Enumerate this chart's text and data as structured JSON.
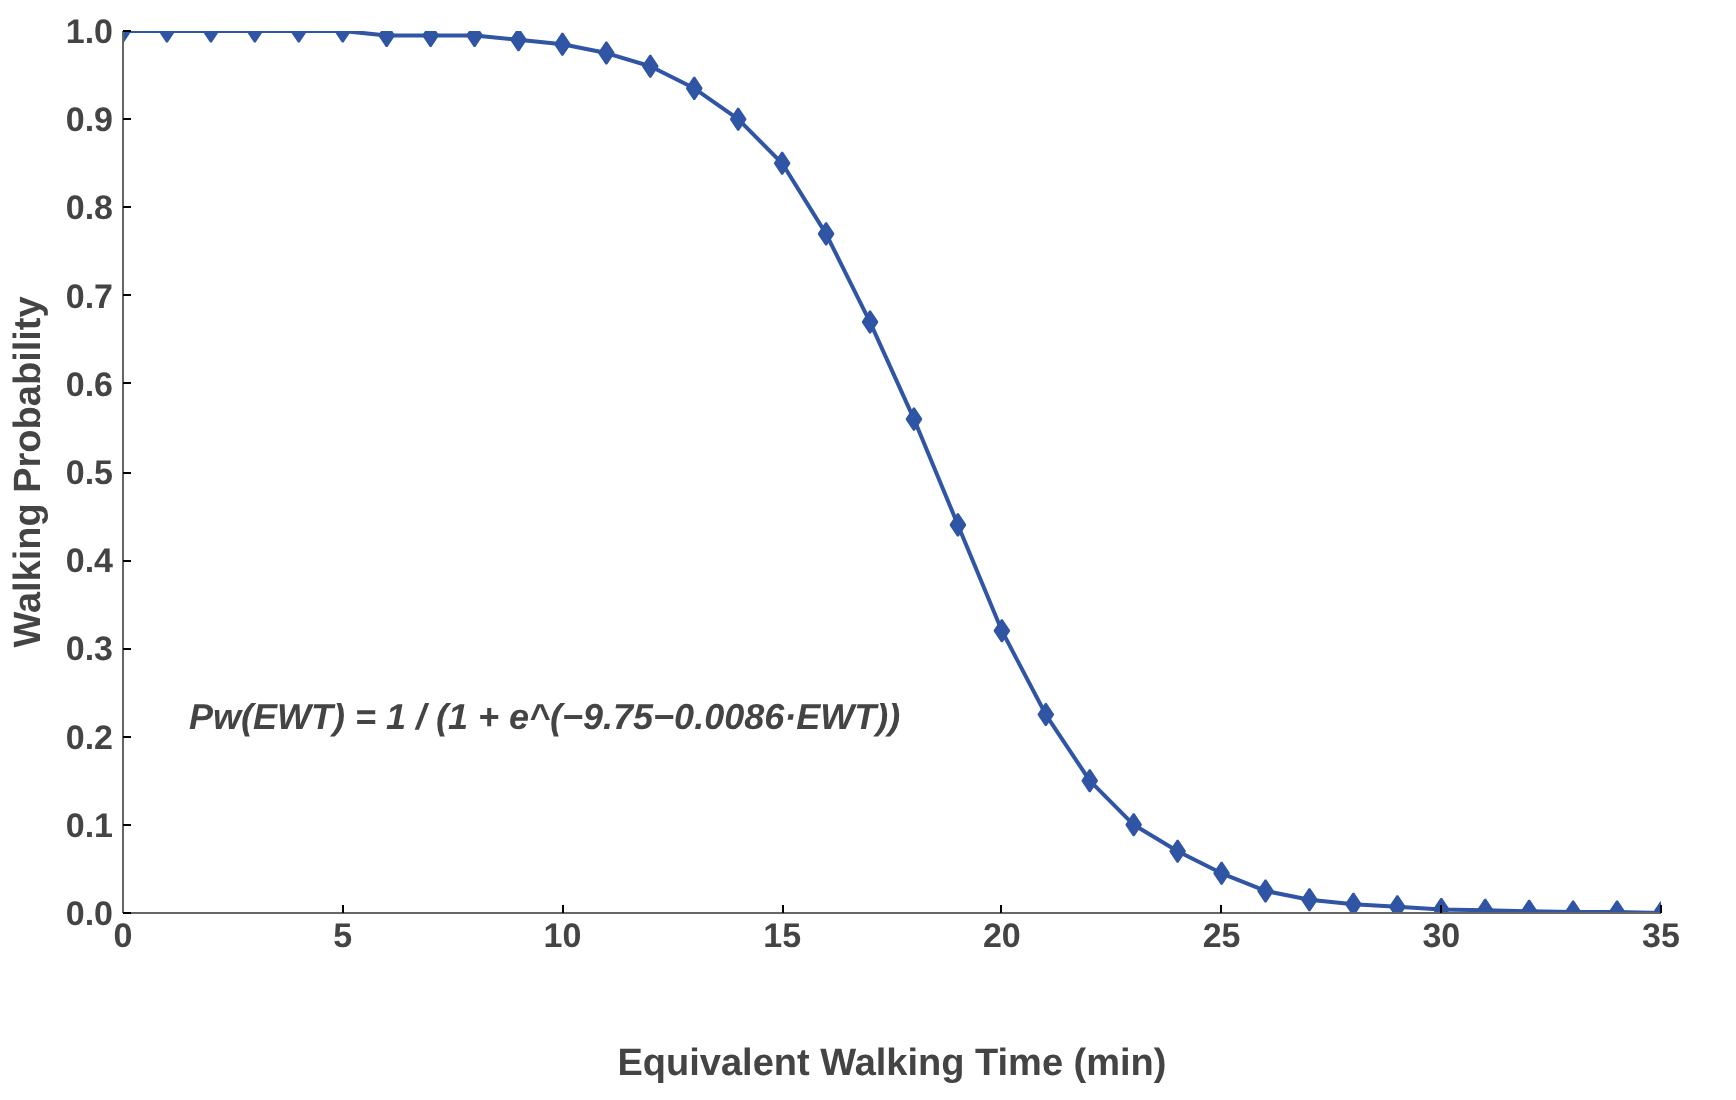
{
  "chart_data": {
    "type": "line",
    "xlabel": "Equivalent Walking Time (min)",
    "ylabel": "Walking Probability",
    "x": [
      0,
      1,
      2,
      3,
      4,
      5,
      6,
      7,
      8,
      9,
      10,
      11,
      12,
      13,
      14,
      15,
      16,
      17,
      18,
      19,
      20,
      21,
      22,
      23,
      24,
      25,
      26,
      27,
      28,
      29,
      30,
      31,
      32,
      33,
      34,
      35
    ],
    "series": [
      {
        "color": "#2f55a4",
        "values": [
          1.0,
          1.0,
          1.0,
          1.0,
          1.0,
          1.0,
          0.995,
          0.995,
          0.995,
          0.99,
          0.985,
          0.975,
          0.96,
          0.935,
          0.9,
          0.85,
          0.77,
          0.67,
          0.56,
          0.44,
          0.32,
          0.225,
          0.15,
          0.1,
          0.07,
          0.045,
          0.025,
          0.015,
          0.01,
          0.007,
          0.004,
          0.003,
          0.002,
          0.001,
          0.001,
          0.0
        ]
      }
    ],
    "xlim": [
      0,
      35
    ],
    "ylim": [
      0,
      1.0
    ],
    "xticks": [
      0,
      5,
      10,
      15,
      20,
      25,
      30,
      35
    ],
    "yticks": [
      {
        "value": 0,
        "label": "0.0"
      },
      0.1,
      0.2,
      0.3,
      0.4,
      0.5,
      0.6,
      0.7,
      0.8,
      0.9,
      {
        "value": 1,
        "label": "1.0"
      }
    ],
    "marker": "diamond",
    "line_style": "solid",
    "grid": false,
    "annotations": [
      "Pw(EWT) = 1 / (1 + e^(−9.75−0.0086·EWT))"
    ]
  }
}
